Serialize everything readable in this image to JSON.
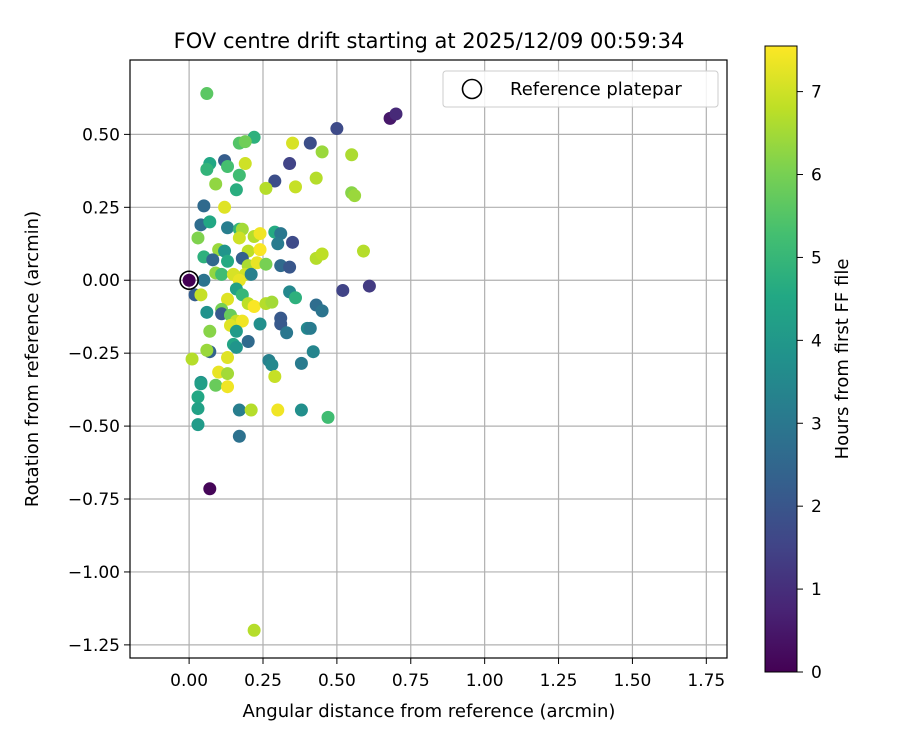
{
  "chart_data": {
    "type": "scatter",
    "title": "FOV centre drift starting at 2025/12/09 00:59:34",
    "xlabel": "Angular distance from reference (arcmin)",
    "ylabel": "Rotation from reference (arcmin)",
    "xlim": [
      -0.2,
      1.82
    ],
    "ylim": [
      -1.295,
      0.755
    ],
    "xticks": [
      0.0,
      0.25,
      0.5,
      0.75,
      1.0,
      1.25,
      1.5,
      1.75
    ],
    "xtick_labels": [
      "0.00",
      "0.25",
      "0.50",
      "0.75",
      "1.00",
      "1.25",
      "1.50",
      "1.75"
    ],
    "yticks": [
      0.5,
      0.25,
      0.0,
      -0.25,
      -0.5,
      -0.75,
      -1.0,
      -1.25
    ],
    "ytick_labels": [
      "0.50",
      "0.25",
      "0.00",
      "−0.25",
      "−0.50",
      "−0.75",
      "−1.00",
      "−1.25"
    ],
    "grid": true,
    "legend": {
      "position": "top-right",
      "entries": [
        "Reference platepar"
      ]
    },
    "reference_point": {
      "x": 0.0,
      "y": 0.0
    },
    "colorbar": {
      "label": "Hours from first FF file",
      "colormap": "viridis",
      "range": [
        0,
        7.55
      ],
      "ticks": [
        0,
        1,
        2,
        3,
        4,
        5,
        6,
        7
      ],
      "tick_labels": [
        "0",
        "1",
        "2",
        "3",
        "4",
        "5",
        "6",
        "7"
      ]
    },
    "points": [
      {
        "x": 0.06,
        "y": 0.64,
        "c": 5.6
      },
      {
        "x": 0.22,
        "y": 0.49,
        "c": 4.8
      },
      {
        "x": 0.17,
        "y": 0.47,
        "c": 5.5
      },
      {
        "x": 0.19,
        "y": 0.475,
        "c": 5.9
      },
      {
        "x": 0.35,
        "y": 0.47,
        "c": 7.1
      },
      {
        "x": 0.41,
        "y": 0.47,
        "c": 1.8
      },
      {
        "x": 0.5,
        "y": 0.52,
        "c": 1.7
      },
      {
        "x": 0.68,
        "y": 0.555,
        "c": 0.5
      },
      {
        "x": 0.7,
        "y": 0.57,
        "c": 0.9
      },
      {
        "x": 0.45,
        "y": 0.44,
        "c": 6.4
      },
      {
        "x": 0.55,
        "y": 0.43,
        "c": 6.6
      },
      {
        "x": 0.12,
        "y": 0.41,
        "c": 2.2
      },
      {
        "x": 0.07,
        "y": 0.4,
        "c": 4.5
      },
      {
        "x": 0.13,
        "y": 0.39,
        "c": 5.3
      },
      {
        "x": 0.06,
        "y": 0.38,
        "c": 4.9
      },
      {
        "x": 0.34,
        "y": 0.4,
        "c": 1.5
      },
      {
        "x": 0.19,
        "y": 0.4,
        "c": 7.0
      },
      {
        "x": 0.17,
        "y": 0.36,
        "c": 5.2
      },
      {
        "x": 0.09,
        "y": 0.33,
        "c": 6.3
      },
      {
        "x": 0.29,
        "y": 0.34,
        "c": 1.8
      },
      {
        "x": 0.16,
        "y": 0.31,
        "c": 4.7
      },
      {
        "x": 0.26,
        "y": 0.315,
        "c": 6.7
      },
      {
        "x": 0.36,
        "y": 0.32,
        "c": 6.9
      },
      {
        "x": 0.43,
        "y": 0.35,
        "c": 6.7
      },
      {
        "x": 0.55,
        "y": 0.3,
        "c": 6.2
      },
      {
        "x": 0.56,
        "y": 0.29,
        "c": 6.4
      },
      {
        "x": 0.05,
        "y": 0.255,
        "c": 2.6
      },
      {
        "x": 0.12,
        "y": 0.25,
        "c": 7.2
      },
      {
        "x": 0.04,
        "y": 0.19,
        "c": 2.7
      },
      {
        "x": 0.07,
        "y": 0.2,
        "c": 4.5
      },
      {
        "x": 0.13,
        "y": 0.18,
        "c": 3.2
      },
      {
        "x": 0.17,
        "y": 0.175,
        "c": 4.9
      },
      {
        "x": 0.18,
        "y": 0.175,
        "c": 6.5
      },
      {
        "x": 0.29,
        "y": 0.165,
        "c": 4.6
      },
      {
        "x": 0.31,
        "y": 0.16,
        "c": 3.0
      },
      {
        "x": 0.22,
        "y": 0.15,
        "c": 6.7
      },
      {
        "x": 0.24,
        "y": 0.16,
        "c": 7.4
      },
      {
        "x": 0.17,
        "y": 0.145,
        "c": 7.0
      },
      {
        "x": 0.03,
        "y": 0.145,
        "c": 6.1
      },
      {
        "x": 0.3,
        "y": 0.125,
        "c": 3.1
      },
      {
        "x": 0.35,
        "y": 0.13,
        "c": 1.7
      },
      {
        "x": 0.1,
        "y": 0.105,
        "c": 6.4
      },
      {
        "x": 0.12,
        "y": 0.1,
        "c": 3.9
      },
      {
        "x": 0.2,
        "y": 0.1,
        "c": 6.8
      },
      {
        "x": 0.24,
        "y": 0.105,
        "c": 7.5
      },
      {
        "x": 0.05,
        "y": 0.08,
        "c": 4.8
      },
      {
        "x": 0.08,
        "y": 0.07,
        "c": 2.5
      },
      {
        "x": 0.13,
        "y": 0.065,
        "c": 4.6
      },
      {
        "x": 0.18,
        "y": 0.075,
        "c": 2.3
      },
      {
        "x": 0.2,
        "y": 0.05,
        "c": 6.6
      },
      {
        "x": 0.23,
        "y": 0.06,
        "c": 7.3
      },
      {
        "x": 0.26,
        "y": 0.055,
        "c": 6.0
      },
      {
        "x": 0.31,
        "y": 0.05,
        "c": 2.6
      },
      {
        "x": 0.34,
        "y": 0.045,
        "c": 2.0
      },
      {
        "x": 0.43,
        "y": 0.075,
        "c": 6.7
      },
      {
        "x": 0.45,
        "y": 0.09,
        "c": 6.8
      },
      {
        "x": 0.59,
        "y": 0.1,
        "c": 6.7
      },
      {
        "x": 0.09,
        "y": 0.025,
        "c": 6.3
      },
      {
        "x": 0.11,
        "y": 0.02,
        "c": 5.2
      },
      {
        "x": 0.15,
        "y": 0.02,
        "c": 7.1
      },
      {
        "x": 0.19,
        "y": 0.02,
        "c": 7.0
      },
      {
        "x": 0.21,
        "y": 0.02,
        "c": 3.3
      },
      {
        "x": 0.05,
        "y": 0.0,
        "c": 2.9
      },
      {
        "x": 0.17,
        "y": 0.0,
        "c": 7.3
      },
      {
        "x": 0.16,
        "y": -0.03,
        "c": 4.3
      },
      {
        "x": 0.02,
        "y": -0.05,
        "c": 2.2
      },
      {
        "x": 0.04,
        "y": -0.05,
        "c": 6.9
      },
      {
        "x": 0.13,
        "y": -0.065,
        "c": 7.2
      },
      {
        "x": 0.18,
        "y": -0.05,
        "c": 5.0
      },
      {
        "x": 0.2,
        "y": -0.08,
        "c": 6.8
      },
      {
        "x": 0.22,
        "y": -0.09,
        "c": 7.5
      },
      {
        "x": 0.26,
        "y": -0.08,
        "c": 6.7
      },
      {
        "x": 0.28,
        "y": -0.075,
        "c": 6.5
      },
      {
        "x": 0.34,
        "y": -0.04,
        "c": 3.5
      },
      {
        "x": 0.36,
        "y": -0.06,
        "c": 4.8
      },
      {
        "x": 0.52,
        "y": -0.035,
        "c": 1.5
      },
      {
        "x": 0.61,
        "y": -0.02,
        "c": 1.3
      },
      {
        "x": 0.06,
        "y": -0.11,
        "c": 3.8
      },
      {
        "x": 0.11,
        "y": -0.1,
        "c": 6.0
      },
      {
        "x": 0.11,
        "y": -0.115,
        "c": 2.1
      },
      {
        "x": 0.14,
        "y": -0.12,
        "c": 5.8
      },
      {
        "x": 0.16,
        "y": -0.14,
        "c": 6.9
      },
      {
        "x": 0.18,
        "y": -0.14,
        "c": 7.4
      },
      {
        "x": 0.24,
        "y": -0.15,
        "c": 3.7
      },
      {
        "x": 0.31,
        "y": -0.13,
        "c": 2.1
      },
      {
        "x": 0.31,
        "y": -0.15,
        "c": 2.1
      },
      {
        "x": 0.33,
        "y": -0.18,
        "c": 3.0
      },
      {
        "x": 0.4,
        "y": -0.165,
        "c": 3.5
      },
      {
        "x": 0.41,
        "y": -0.165,
        "c": 3.1
      },
      {
        "x": 0.43,
        "y": -0.085,
        "c": 2.7
      },
      {
        "x": 0.45,
        "y": -0.105,
        "c": 2.9
      },
      {
        "x": 0.07,
        "y": -0.175,
        "c": 6.2
      },
      {
        "x": 0.14,
        "y": -0.155,
        "c": 7.2
      },
      {
        "x": 0.16,
        "y": -0.175,
        "c": 4.1
      },
      {
        "x": 0.2,
        "y": -0.21,
        "c": 2.6
      },
      {
        "x": 0.15,
        "y": -0.22,
        "c": 4.4
      },
      {
        "x": 0.16,
        "y": -0.23,
        "c": 3.9
      },
      {
        "x": 0.07,
        "y": -0.245,
        "c": 2.4
      },
      {
        "x": 0.06,
        "y": -0.24,
        "c": 6.4
      },
      {
        "x": 0.01,
        "y": -0.27,
        "c": 6.7
      },
      {
        "x": 0.13,
        "y": -0.265,
        "c": 7.2
      },
      {
        "x": 0.27,
        "y": -0.275,
        "c": 3.3
      },
      {
        "x": 0.28,
        "y": -0.29,
        "c": 3.5
      },
      {
        "x": 0.29,
        "y": -0.33,
        "c": 6.9
      },
      {
        "x": 0.38,
        "y": -0.285,
        "c": 3.1
      },
      {
        "x": 0.42,
        "y": -0.245,
        "c": 3.4
      },
      {
        "x": 0.1,
        "y": -0.315,
        "c": 7.3
      },
      {
        "x": 0.13,
        "y": -0.32,
        "c": 6.5
      },
      {
        "x": 0.04,
        "y": -0.35,
        "c": 3.8
      },
      {
        "x": 0.04,
        "y": -0.355,
        "c": 4.2
      },
      {
        "x": 0.09,
        "y": -0.36,
        "c": 5.8
      },
      {
        "x": 0.13,
        "y": -0.365,
        "c": 7.4
      },
      {
        "x": 0.03,
        "y": -0.4,
        "c": 4.5
      },
      {
        "x": 0.03,
        "y": -0.44,
        "c": 4.3
      },
      {
        "x": 0.17,
        "y": -0.445,
        "c": 3.2
      },
      {
        "x": 0.21,
        "y": -0.445,
        "c": 6.7
      },
      {
        "x": 0.3,
        "y": -0.445,
        "c": 7.4
      },
      {
        "x": 0.38,
        "y": -0.445,
        "c": 3.7
      },
      {
        "x": 0.47,
        "y": -0.47,
        "c": 5.2
      },
      {
        "x": 0.03,
        "y": -0.495,
        "c": 4.1
      },
      {
        "x": 0.17,
        "y": -0.535,
        "c": 2.8
      },
      {
        "x": 0.07,
        "y": -0.715,
        "c": 0.1
      },
      {
        "x": 0.22,
        "y": -1.2,
        "c": 6.7
      }
    ]
  }
}
